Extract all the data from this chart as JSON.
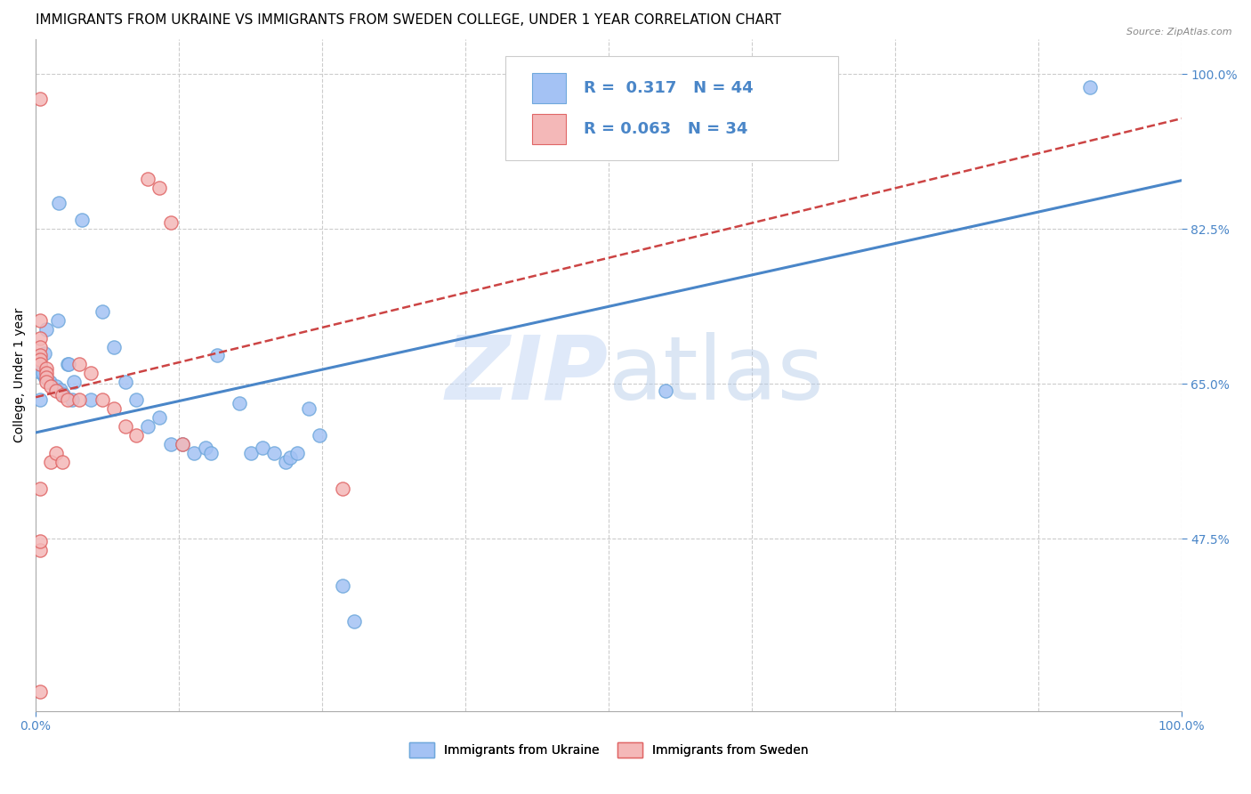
{
  "title": "IMMIGRANTS FROM UKRAINE VS IMMIGRANTS FROM SWEDEN COLLEGE, UNDER 1 YEAR CORRELATION CHART",
  "source": "Source: ZipAtlas.com",
  "ylabel": "College, Under 1 year",
  "xlim": [
    0.0,
    1.0
  ],
  "ylim": [
    0.28,
    1.04
  ],
  "x_tick_positions": [
    0.0,
    1.0
  ],
  "x_tick_labels": [
    "0.0%",
    "100.0%"
  ],
  "y_tick_positions": [
    0.475,
    0.65,
    0.825,
    1.0
  ],
  "y_tick_labels": [
    "47.5%",
    "65.0%",
    "82.5%",
    "100.0%"
  ],
  "grid_x_positions": [
    0.0,
    0.125,
    0.25,
    0.375,
    0.5,
    0.625,
    0.75,
    0.875,
    1.0
  ],
  "watermark_part1": "ZIP",
  "watermark_part2": "atlas",
  "ukraine_color": "#a4c2f4",
  "sweden_color": "#f4b8b8",
  "ukraine_edge_color": "#6fa8dc",
  "sweden_edge_color": "#e06666",
  "ukraine_line_color": "#4a86c8",
  "sweden_line_color": "#cc4444",
  "ukraine_R": "0.317",
  "ukraine_N": "44",
  "sweden_R": "0.063",
  "sweden_N": "34",
  "ukraine_scatter_x": [
    0.02,
    0.04,
    0.008,
    0.004,
    0.004,
    0.008,
    0.012,
    0.018,
    0.022,
    0.024,
    0.028,
    0.032,
    0.048,
    0.058,
    0.068,
    0.078,
    0.088,
    0.098,
    0.108,
    0.118,
    0.128,
    0.138,
    0.148,
    0.153,
    0.158,
    0.178,
    0.188,
    0.198,
    0.208,
    0.218,
    0.222,
    0.228,
    0.238,
    0.248,
    0.268,
    0.278,
    0.004,
    0.006,
    0.009,
    0.019,
    0.029,
    0.033,
    0.55,
    0.92
  ],
  "ukraine_scatter_y": [
    0.855,
    0.835,
    0.685,
    0.672,
    0.663,
    0.658,
    0.652,
    0.647,
    0.643,
    0.638,
    0.672,
    0.632,
    0.632,
    0.732,
    0.692,
    0.652,
    0.632,
    0.602,
    0.612,
    0.582,
    0.582,
    0.572,
    0.578,
    0.572,
    0.682,
    0.628,
    0.572,
    0.578,
    0.572,
    0.562,
    0.567,
    0.572,
    0.622,
    0.592,
    0.422,
    0.382,
    0.632,
    0.662,
    0.712,
    0.722,
    0.672,
    0.652,
    0.642,
    0.985
  ],
  "sweden_scatter_x": [
    0.004,
    0.004,
    0.004,
    0.004,
    0.004,
    0.004,
    0.009,
    0.009,
    0.009,
    0.009,
    0.013,
    0.013,
    0.018,
    0.018,
    0.023,
    0.023,
    0.028,
    0.038,
    0.038,
    0.048,
    0.058,
    0.068,
    0.078,
    0.088,
    0.098,
    0.108,
    0.118,
    0.128,
    0.004,
    0.004,
    0.004,
    0.268,
    0.004,
    0.004
  ],
  "sweden_scatter_y": [
    0.722,
    0.702,
    0.692,
    0.682,
    0.677,
    0.672,
    0.667,
    0.662,
    0.657,
    0.652,
    0.647,
    0.562,
    0.642,
    0.572,
    0.637,
    0.562,
    0.632,
    0.672,
    0.632,
    0.662,
    0.632,
    0.622,
    0.602,
    0.592,
    0.882,
    0.872,
    0.832,
    0.582,
    0.462,
    0.472,
    0.532,
    0.532,
    0.302,
    0.972
  ],
  "ukraine_trend_start_x": 0.0,
  "ukraine_trend_start_y": 0.595,
  "ukraine_trend_end_x": 1.0,
  "ukraine_trend_end_y": 0.88,
  "sweden_trend_start_x": 0.0,
  "sweden_trend_start_y": 0.635,
  "sweden_trend_end_x": 1.0,
  "sweden_trend_end_y": 0.95,
  "grid_color": "#cccccc",
  "background_color": "#ffffff",
  "title_fontsize": 11,
  "axis_label_fontsize": 10,
  "tick_fontsize": 10,
  "legend_fontsize": 13
}
